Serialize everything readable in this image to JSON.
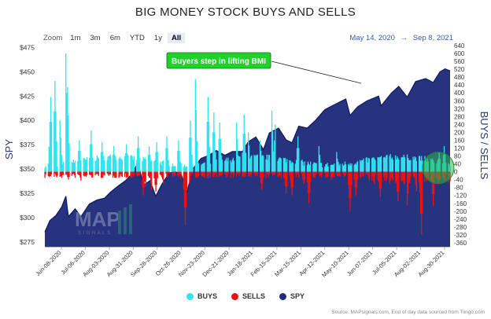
{
  "title": "BIG MONEY STOCK BUYS AND SELLS",
  "zoom": {
    "label": "Zoom",
    "buttons": [
      "1m",
      "3m",
      "6m",
      "YTD",
      "1y",
      "All"
    ],
    "active": "All"
  },
  "range": {
    "from": "May 14, 2020",
    "sep": "→",
    "to": "Sep 8, 2021"
  },
  "annotation": "Buyers step in lifting BMI",
  "watermark": {
    "main": "MAP",
    "sub": "SIGNALS"
  },
  "legend": [
    {
      "label": "BUYS",
      "color": "#30e3ee"
    },
    {
      "label": "SELLS",
      "color": "#ee1111"
    },
    {
      "label": "SPY",
      "color": "#1f2d7a"
    }
  ],
  "credits": "Source: MAPsignals.com, End of day data sourced from Tiingo.com",
  "colors": {
    "spy_fill": "#27337f",
    "buys": "#30e3ee",
    "sells": "#ee1111",
    "highlight": "#2eb84a",
    "annotation_bg": "#1fd22a"
  },
  "chart_data": {
    "type": "bar",
    "left_axis": {
      "label": "SPY",
      "ticks": [
        "$275",
        "$300",
        "$325",
        "$350",
        "$375",
        "$400",
        "$425",
        "$450",
        "$475"
      ],
      "min": 270,
      "max": 477
    },
    "right_axis": {
      "label": "BUYS / SELLS",
      "ticks": [
        640,
        600,
        560,
        520,
        480,
        440,
        400,
        360,
        320,
        280,
        240,
        200,
        160,
        120,
        80,
        40,
        0,
        -40,
        -80,
        -120,
        -160,
        -200,
        -240,
        -280,
        -320,
        -360
      ],
      "min": -380,
      "max": 640
    },
    "x_labels": [
      "Jun-08-2020",
      "Jul-06-2020",
      "Aug-03-2020",
      "Aug-31-2020",
      "Sep-28-2020",
      "Oct-26-2020",
      "Nov-23-2020",
      "Dec-21-2020",
      "Jan-18-2021",
      "Feb-15-2021",
      "Mar-15-2021",
      "Apr-12-2021",
      "May-10-2021",
      "Jun-07-2021",
      "Jul-05-2021",
      "Aug-02-2021",
      "Aug-30-2021"
    ],
    "spy_points": [
      [
        "2020-05-14",
        285
      ],
      [
        "2020-05-20",
        297
      ],
      [
        "2020-05-27",
        302
      ],
      [
        "2020-06-03",
        311
      ],
      [
        "2020-06-08",
        322
      ],
      [
        "2020-06-11",
        301
      ],
      [
        "2020-06-19",
        309
      ],
      [
        "2020-06-26",
        301
      ],
      [
        "2020-07-06",
        314
      ],
      [
        "2020-07-15",
        318
      ],
      [
        "2020-07-24",
        320
      ],
      [
        "2020-07-31",
        326
      ],
      [
        "2020-08-10",
        333
      ],
      [
        "2020-08-18",
        338
      ],
      [
        "2020-08-26",
        345
      ],
      [
        "2020-09-02",
        357
      ],
      [
        "2020-09-08",
        333
      ],
      [
        "2020-09-16",
        338
      ],
      [
        "2020-09-23",
        322
      ],
      [
        "2020-09-30",
        334
      ],
      [
        "2020-10-09",
        346
      ],
      [
        "2020-10-16",
        347
      ],
      [
        "2020-10-23",
        345
      ],
      [
        "2020-10-30",
        326
      ],
      [
        "2020-11-06",
        350
      ],
      [
        "2020-11-16",
        361
      ],
      [
        "2020-11-25",
        364
      ],
      [
        "2020-12-04",
        369
      ],
      [
        "2020-12-14",
        364
      ],
      [
        "2020-12-23",
        368
      ],
      [
        "2021-01-04",
        368
      ],
      [
        "2021-01-11",
        378
      ],
      [
        "2021-01-20",
        383
      ],
      [
        "2021-01-29",
        370
      ],
      [
        "2021-02-05",
        387
      ],
      [
        "2021-02-16",
        392
      ],
      [
        "2021-02-25",
        380
      ],
      [
        "2021-03-04",
        377
      ],
      [
        "2021-03-12",
        394
      ],
      [
        "2021-03-22",
        392
      ],
      [
        "2021-04-01",
        400
      ],
      [
        "2021-04-12",
        411
      ],
      [
        "2021-04-23",
        416
      ],
      [
        "2021-05-07",
        422
      ],
      [
        "2021-05-12",
        405
      ],
      [
        "2021-05-21",
        414
      ],
      [
        "2021-06-01",
        420
      ],
      [
        "2021-06-15",
        425
      ],
      [
        "2021-06-18",
        415
      ],
      [
        "2021-06-30",
        428
      ],
      [
        "2021-07-09",
        435
      ],
      [
        "2021-07-19",
        424
      ],
      [
        "2021-07-29",
        440
      ],
      [
        "2021-08-10",
        443
      ],
      [
        "2021-08-19",
        439
      ],
      [
        "2021-08-27",
        450
      ],
      [
        "2021-09-02",
        453
      ],
      [
        "2021-09-08",
        451
      ]
    ],
    "buys_spikes": [
      [
        "2020-05-21",
        380
      ],
      [
        "2020-05-26",
        460
      ],
      [
        "2020-06-01",
        260
      ],
      [
        "2020-06-08",
        600
      ],
      [
        "2020-06-10",
        430
      ],
      [
        "2020-06-24",
        160
      ],
      [
        "2020-07-08",
        210
      ],
      [
        "2020-07-21",
        150
      ],
      [
        "2020-08-04",
        130
      ],
      [
        "2020-08-19",
        140
      ],
      [
        "2020-09-02",
        180
      ],
      [
        "2020-09-15",
        130
      ],
      [
        "2020-09-24",
        150
      ],
      [
        "2020-10-06",
        180
      ],
      [
        "2020-10-20",
        160
      ],
      [
        "2020-11-03",
        260
      ],
      [
        "2020-11-09",
        470
      ],
      [
        "2020-11-24",
        380
      ],
      [
        "2020-12-01",
        300
      ],
      [
        "2020-12-08",
        250
      ],
      [
        "2020-12-28",
        250
      ],
      [
        "2021-01-06",
        290
      ],
      [
        "2021-01-11",
        200
      ],
      [
        "2021-01-25",
        160
      ],
      [
        "2021-02-08",
        310
      ],
      [
        "2021-02-12",
        240
      ],
      [
        "2021-03-11",
        180
      ],
      [
        "2021-04-05",
        130
      ],
      [
        "2021-04-26",
        100
      ],
      [
        "2021-05-28",
        60
      ],
      [
        "2021-06-07",
        70
      ],
      [
        "2021-06-29",
        90
      ],
      [
        "2021-07-23",
        60
      ],
      [
        "2021-08-09",
        80
      ],
      [
        "2021-08-26",
        100
      ],
      [
        "2021-09-01",
        130
      ]
    ],
    "sells_spikes": [
      [
        "2020-06-11",
        -40
      ],
      [
        "2020-06-26",
        -45
      ],
      [
        "2020-07-24",
        -20
      ],
      [
        "2020-08-21",
        -30
      ],
      [
        "2020-09-08",
        -120
      ],
      [
        "2020-09-11",
        -75
      ],
      [
        "2020-09-18",
        -90
      ],
      [
        "2020-09-23",
        -100
      ],
      [
        "2020-10-02",
        -60
      ],
      [
        "2020-10-28",
        -270
      ],
      [
        "2020-11-02",
        -60
      ],
      [
        "2021-01-27",
        -90
      ],
      [
        "2021-02-25",
        -110
      ],
      [
        "2021-03-04",
        -120
      ],
      [
        "2021-03-18",
        -60
      ],
      [
        "2021-03-24",
        -160
      ],
      [
        "2021-04-20",
        -40
      ],
      [
        "2021-05-12",
        -200
      ],
      [
        "2021-05-19",
        -120
      ],
      [
        "2021-06-17",
        -130
      ],
      [
        "2021-06-28",
        -50
      ],
      [
        "2021-07-08",
        -150
      ],
      [
        "2021-07-19",
        -170
      ],
      [
        "2021-07-30",
        -100
      ],
      [
        "2021-08-05",
        -320
      ],
      [
        "2021-08-19",
        -170
      ],
      [
        "2021-08-27",
        -40
      ]
    ],
    "date_range": [
      "2020-05-14",
      "2021-09-08"
    ]
  }
}
